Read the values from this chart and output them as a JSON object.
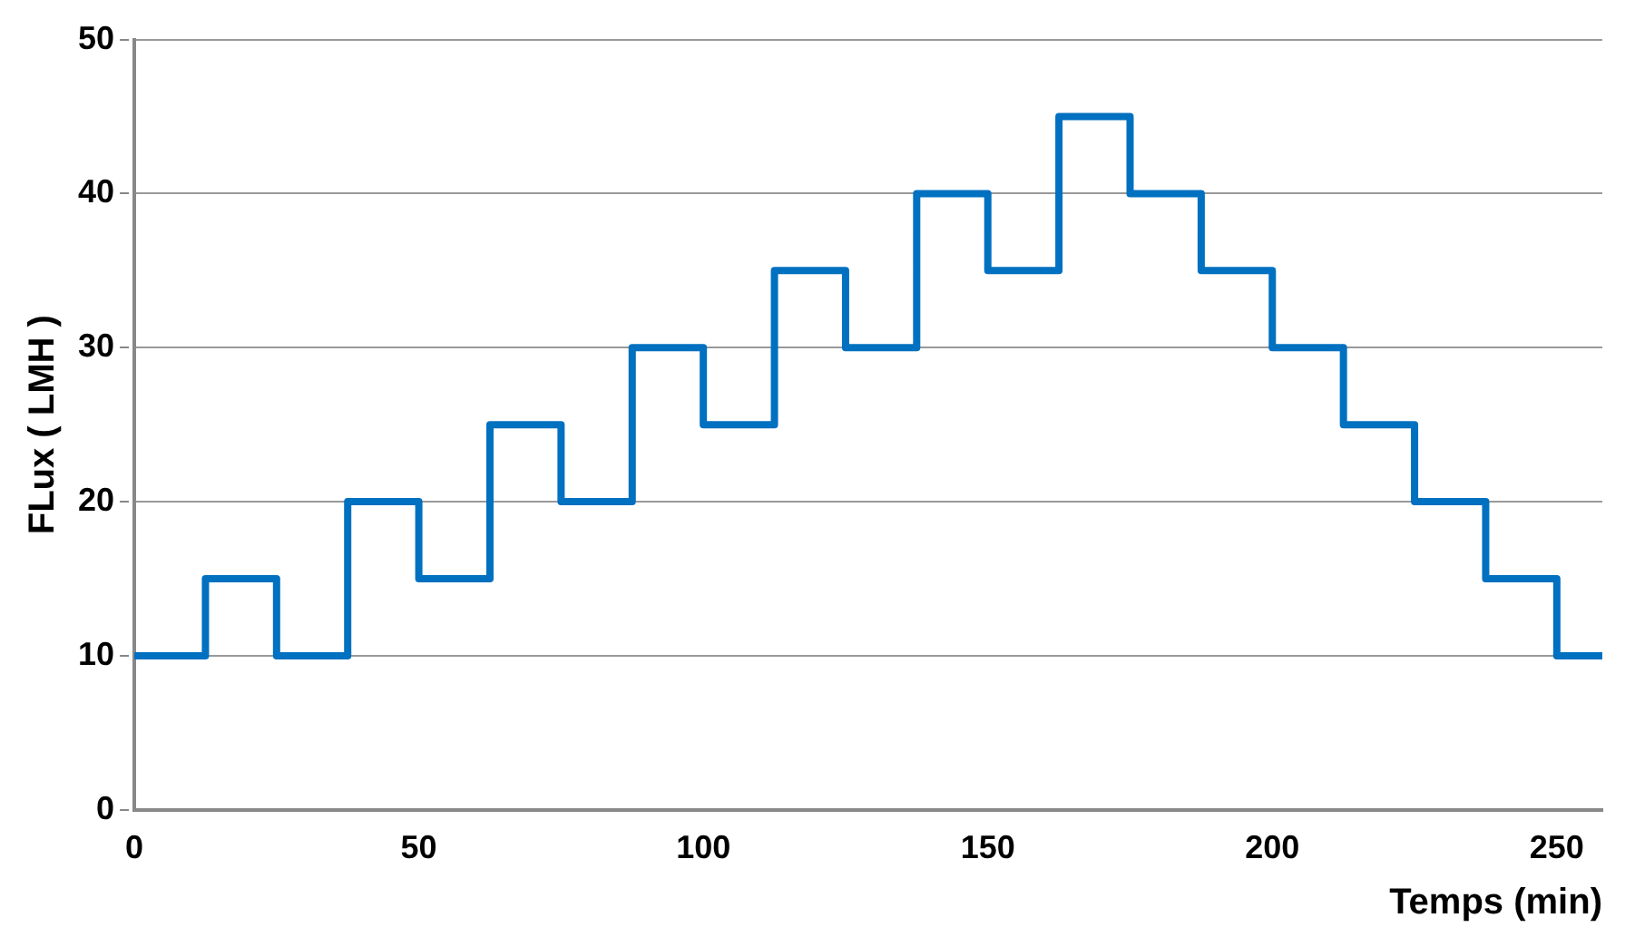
{
  "chart_data": {
    "type": "step",
    "xlabel": "Temps (min)",
    "ylabel": "FLux ( LMH )",
    "x": [
      0,
      12.5,
      25,
      37.5,
      50,
      62.5,
      75,
      87.5,
      100,
      112.5,
      125,
      137.5,
      150,
      162.5,
      175,
      187.5,
      200,
      212.5,
      225,
      237.5,
      250,
      258
    ],
    "series": [
      {
        "color": "#0070c0",
        "values": [
          10,
          15,
          10,
          20,
          15,
          25,
          20,
          30,
          25,
          35,
          30,
          40,
          35,
          45,
          40,
          35,
          30,
          25,
          20,
          15,
          10,
          10
        ]
      }
    ],
    "xlim": [
      0,
      258
    ],
    "xticks": [
      0,
      50,
      100,
      150,
      200,
      250
    ],
    "ylim": [
      0,
      50
    ],
    "yticks": [
      0,
      10,
      20,
      30,
      40,
      50
    ],
    "grid": "y",
    "legend": false,
    "line_style": "solid",
    "marker": "none"
  }
}
